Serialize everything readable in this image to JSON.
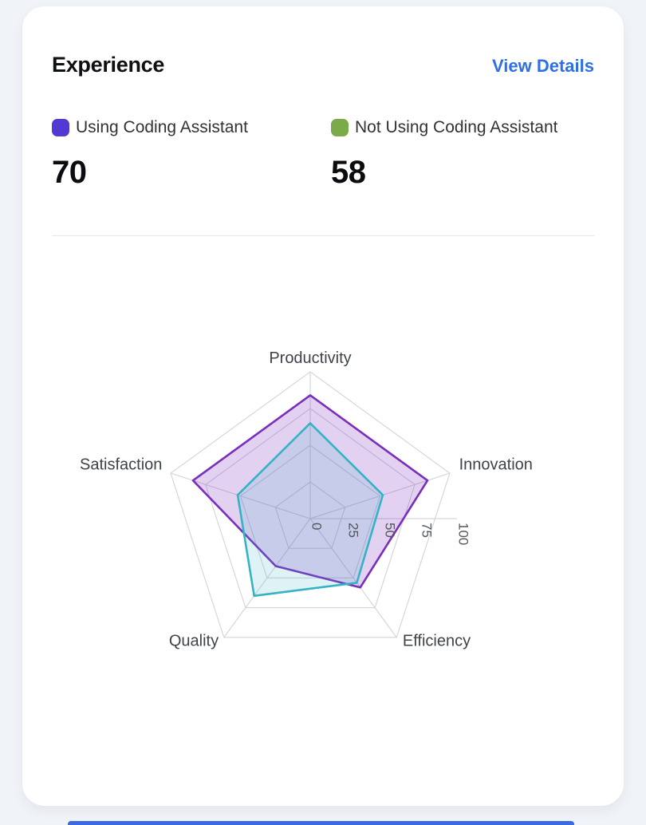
{
  "page": {
    "background_color": "#F0F3F7",
    "bottom_peek_color": "#3A6BE0"
  },
  "card": {
    "title": "Experience",
    "action_label": "View Details",
    "accent_blue": "#2E6FE4"
  },
  "metrics": [
    {
      "label": "Using Coding Assistant",
      "value": "70",
      "swatch_color": "#5438D5"
    },
    {
      "label": "Not Using Coding Assistant",
      "value": "58",
      "swatch_color": "#7CA94A"
    }
  ],
  "chart_data": {
    "type": "radar",
    "categories": [
      "Productivity",
      "Innovation",
      "Efficiency",
      "Quality",
      "Satisfaction"
    ],
    "series": [
      {
        "name": "Using Coding Assistant",
        "values": [
          84,
          84,
          58,
          40,
          84
        ],
        "stroke": "#7A2EBE",
        "fill": "rgba(122,46,190,0.22)"
      },
      {
        "name": "Not Using Coding Assistant",
        "values": [
          65,
          52,
          54,
          65,
          52
        ],
        "stroke": "#35B3C4",
        "fill": "rgba(53,179,196,0.16)"
      }
    ],
    "radial_ticks": [
      0,
      25,
      50,
      75,
      100
    ],
    "rmax": 100,
    "grid_shape": "pentagon",
    "grid_color": "#D6D7DC",
    "tick_color": "#53565C",
    "category_label_color": "#3E434A",
    "radial_axis_angle_deg": 0,
    "legend_position": "top"
  }
}
